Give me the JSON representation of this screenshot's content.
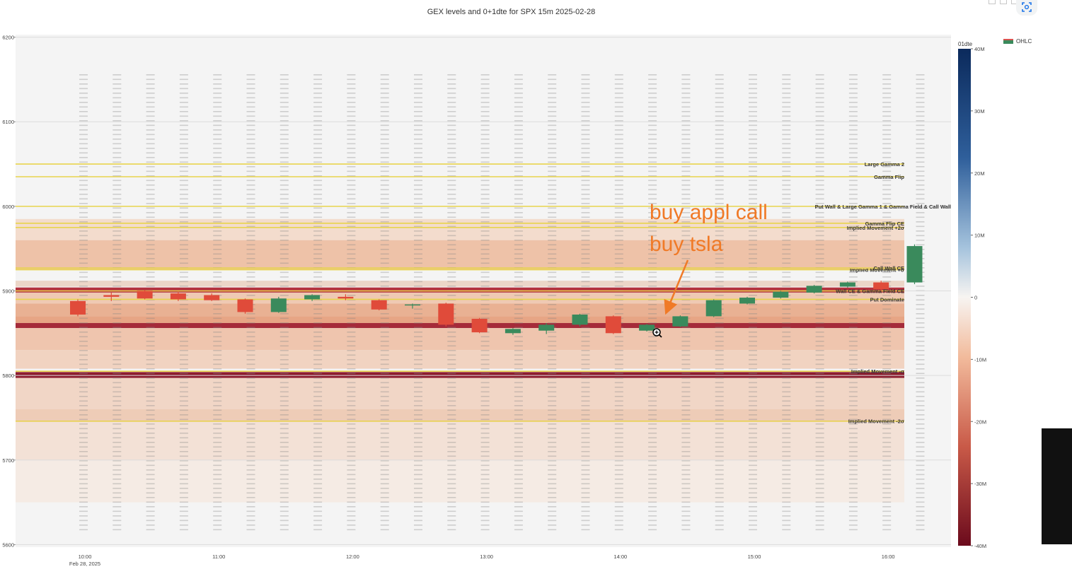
{
  "title": "GEX levels and 0+1dte for SPX 15m 2025-02-28",
  "legend": {
    "label": "OHLC"
  },
  "colorbar": {
    "title": "01dte",
    "ticks": [
      {
        "label": "40M",
        "value": 40
      },
      {
        "label": "30M",
        "value": 30
      },
      {
        "label": "20M",
        "value": 20
      },
      {
        "label": "10M",
        "value": 10
      },
      {
        "label": "0",
        "value": 0
      },
      {
        "label": "-10M",
        "value": -10
      },
      {
        "label": "-20M",
        "value": -20
      },
      {
        "label": "-30M",
        "value": -30
      },
      {
        "label": "-40M",
        "value": -40
      }
    ]
  },
  "annotations": {
    "line1": "buy appl call",
    "line2": "buy tsla"
  },
  "chart_data": {
    "type": "heatmap",
    "xlabel": "",
    "ylabel": "",
    "ylim": [
      5597,
      6203
    ],
    "x_ticks": [
      {
        "label": "10:00",
        "sub": "Feb 28, 2025",
        "slot": 0
      },
      {
        "label": "11:00",
        "sub": "",
        "slot": 4
      },
      {
        "label": "12:00",
        "sub": "",
        "slot": 8
      },
      {
        "label": "13:00",
        "sub": "",
        "slot": 12
      },
      {
        "label": "14:00",
        "sub": "",
        "slot": 16
      },
      {
        "label": "15:00",
        "sub": "",
        "slot": 20
      },
      {
        "label": "16:00",
        "sub": "",
        "slot": 24
      }
    ],
    "y_ticks": [
      6200,
      6100,
      6000,
      5900,
      5800,
      5700,
      5600
    ],
    "levels": [
      {
        "name": "Large Gamma 2",
        "price": 6050,
        "color": "#e8d44d"
      },
      {
        "name": "Gamma Flip",
        "price": 6035,
        "color": "#e8d44d"
      },
      {
        "name": "Put Wall & Large Gamma 1 & Gamma Field & Call Wall",
        "price": 6000,
        "color": "#e8d44d"
      },
      {
        "name": "Gamma Flip CE",
        "price": 5980,
        "color": "#e8d44d"
      },
      {
        "name": "Implied Movement +2σ",
        "price": 5975,
        "color": "#e8d44d"
      },
      {
        "name": "Implied Movement +σ",
        "price": 5925,
        "color": "#e8d44d"
      },
      {
        "name": "Call Wall CE",
        "price": 5927,
        "color": "#e8d44d"
      },
      {
        "name": "Wall CE & Gamma Field CE",
        "price": 5900,
        "color": "#e8d44d"
      },
      {
        "name": "Put Dominate",
        "price": 5890,
        "color": "#e8d44d"
      },
      {
        "name": "Implied Movement -σ",
        "price": 5805,
        "color": "#e8d44d"
      },
      {
        "name": "Implied Movement -2σ",
        "price": 5746,
        "color": "#e8d44d"
      }
    ],
    "series": [
      {
        "name": "OHLC",
        "type": "candlestick",
        "candles": [
          {
            "o": 5888,
            "h": 5890,
            "l": 5870,
            "c": 5872
          },
          {
            "o": 5895,
            "h": 5898,
            "l": 5888,
            "c": 5893
          },
          {
            "o": 5900,
            "h": 5901,
            "l": 5890,
            "c": 5891
          },
          {
            "o": 5897,
            "h": 5899,
            "l": 5888,
            "c": 5890
          },
          {
            "o": 5895,
            "h": 5897,
            "l": 5888,
            "c": 5889
          },
          {
            "o": 5890,
            "h": 5891,
            "l": 5873,
            "c": 5875
          },
          {
            "o": 5875,
            "h": 5893,
            "l": 5874,
            "c": 5891
          },
          {
            "o": 5890,
            "h": 5896,
            "l": 5888,
            "c": 5895
          },
          {
            "o": 5893,
            "h": 5896,
            "l": 5889,
            "c": 5891
          },
          {
            "o": 5889,
            "h": 5890,
            "l": 5877,
            "c": 5878
          },
          {
            "o": 5883,
            "h": 5885,
            "l": 5879,
            "c": 5884
          },
          {
            "o": 5885,
            "h": 5886,
            "l": 5858,
            "c": 5860
          },
          {
            "o": 5867,
            "h": 5868,
            "l": 5850,
            "c": 5851
          },
          {
            "o": 5850,
            "h": 5856,
            "l": 5848,
            "c": 5855
          },
          {
            "o": 5853,
            "h": 5862,
            "l": 5849,
            "c": 5860
          },
          {
            "o": 5860,
            "h": 5873,
            "l": 5858,
            "c": 5872
          },
          {
            "o": 5870,
            "h": 5871,
            "l": 5849,
            "c": 5850
          },
          {
            "o": 5853,
            "h": 5861,
            "l": 5852,
            "c": 5860
          },
          {
            "o": 5858,
            "h": 5871,
            "l": 5857,
            "c": 5870
          },
          {
            "o": 5870,
            "h": 5890,
            "l": 5869,
            "c": 5889
          },
          {
            "o": 5885,
            "h": 5893,
            "l": 5884,
            "c": 5892
          },
          {
            "o": 5892,
            "h": 5900,
            "l": 5891,
            "c": 5899
          },
          {
            "o": 5898,
            "h": 5907,
            "l": 5897,
            "c": 5906
          },
          {
            "o": 5905,
            "h": 5911,
            "l": 5904,
            "c": 5910
          },
          {
            "o": 5910,
            "h": 5912,
            "l": 5900,
            "c": 5902
          },
          {
            "o": 5910,
            "h": 5955,
            "l": 5908,
            "c": 5953
          }
        ]
      }
    ]
  }
}
